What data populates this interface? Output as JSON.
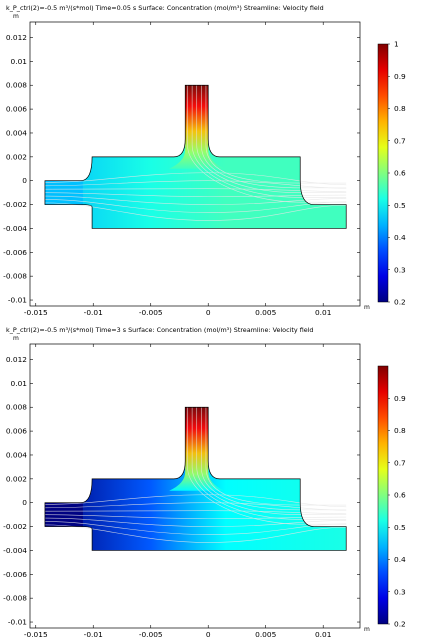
{
  "chart_data": [
    {
      "type": "heatmap",
      "title": "k_P_ctrl(2)=-0.5 m³/(s*mol) Time=0.05 s  Surface: Concentration (mol/m³)  Streamline: Velocity field",
      "x_unit": "m",
      "y_unit": "m",
      "xlim": [
        -0.0155,
        0.0132
      ],
      "ylim": [
        -0.0105,
        0.0133
      ],
      "x_ticks": [
        -0.015,
        -0.01,
        -0.005,
        0,
        0.005,
        0.01
      ],
      "x_tick_labels": [
        "-0.015",
        "-0.01",
        "-0.005",
        "0",
        "0.005",
        "0.01"
      ],
      "y_ticks": [
        -0.01,
        -0.008,
        -0.006,
        -0.004,
        -0.002,
        0,
        0.002,
        0.004,
        0.006,
        0.008,
        0.01,
        0.012
      ],
      "y_tick_labels": [
        "-0.01",
        "-0.008",
        "-0.006",
        "-0.004",
        "-0.002",
        "0",
        "0.002",
        "0.004",
        "0.006",
        "0.008",
        "0.01",
        "0.012"
      ],
      "colorbar": {
        "min": 0.2,
        "max": 1.0,
        "ticks": [
          0.2,
          0.3,
          0.4,
          0.5,
          0.6,
          0.7,
          0.8,
          0.9,
          1
        ],
        "tick_labels": [
          "0.2",
          "0.3",
          "0.4",
          "0.5",
          "0.6",
          "0.7",
          "0.8",
          "0.9",
          "1"
        ]
      },
      "field": {
        "left_inlet_value": 0.45,
        "bulk_value": 0.55,
        "top_inlet_value": 1.0,
        "right_outlet_value": 0.55
      },
      "colors": {
        "streamline": "#e6e6e6",
        "outline": "#000000"
      }
    },
    {
      "type": "heatmap",
      "title": "k_P_ctrl(2)=-0.5 m³/(s*mol) Time=3 s  Surface: Concentration (mol/m³)  Streamline: Velocity field",
      "x_unit": "m",
      "y_unit": "m",
      "xlim": [
        -0.0155,
        0.0132
      ],
      "ylim": [
        -0.0105,
        0.0133
      ],
      "x_ticks": [
        -0.015,
        -0.01,
        -0.005,
        0,
        0.005,
        0.01
      ],
      "x_tick_labels": [
        "-0.015",
        "-0.01",
        "-0.005",
        "0",
        "0.005",
        "0.01"
      ],
      "y_ticks": [
        -0.01,
        -0.008,
        -0.006,
        -0.004,
        -0.002,
        0,
        0.002,
        0.004,
        0.006,
        0.008,
        0.01,
        0.012
      ],
      "y_tick_labels": [
        "-0.01",
        "-0.008",
        "-0.006",
        "-0.004",
        "-0.002",
        "0",
        "0.002",
        "0.004",
        "0.006",
        "0.008",
        "0.01",
        "0.012"
      ],
      "colorbar": {
        "min": 0.2,
        "max": 1.0,
        "ticks": [
          0.2,
          0.3,
          0.4,
          0.5,
          0.6,
          0.7,
          0.8,
          0.9
        ],
        "tick_labels": [
          "0.2",
          "0.3",
          "0.4",
          "0.5",
          "0.6",
          "0.7",
          "0.8",
          "0.9"
        ]
      },
      "field": {
        "left_inlet_value": 0.2,
        "bulk_value": 0.5,
        "top_inlet_value": 1.0,
        "right_outlet_value": 0.52
      },
      "colors": {
        "streamline": "#e6e6e6",
        "outline": "#000000"
      }
    }
  ]
}
